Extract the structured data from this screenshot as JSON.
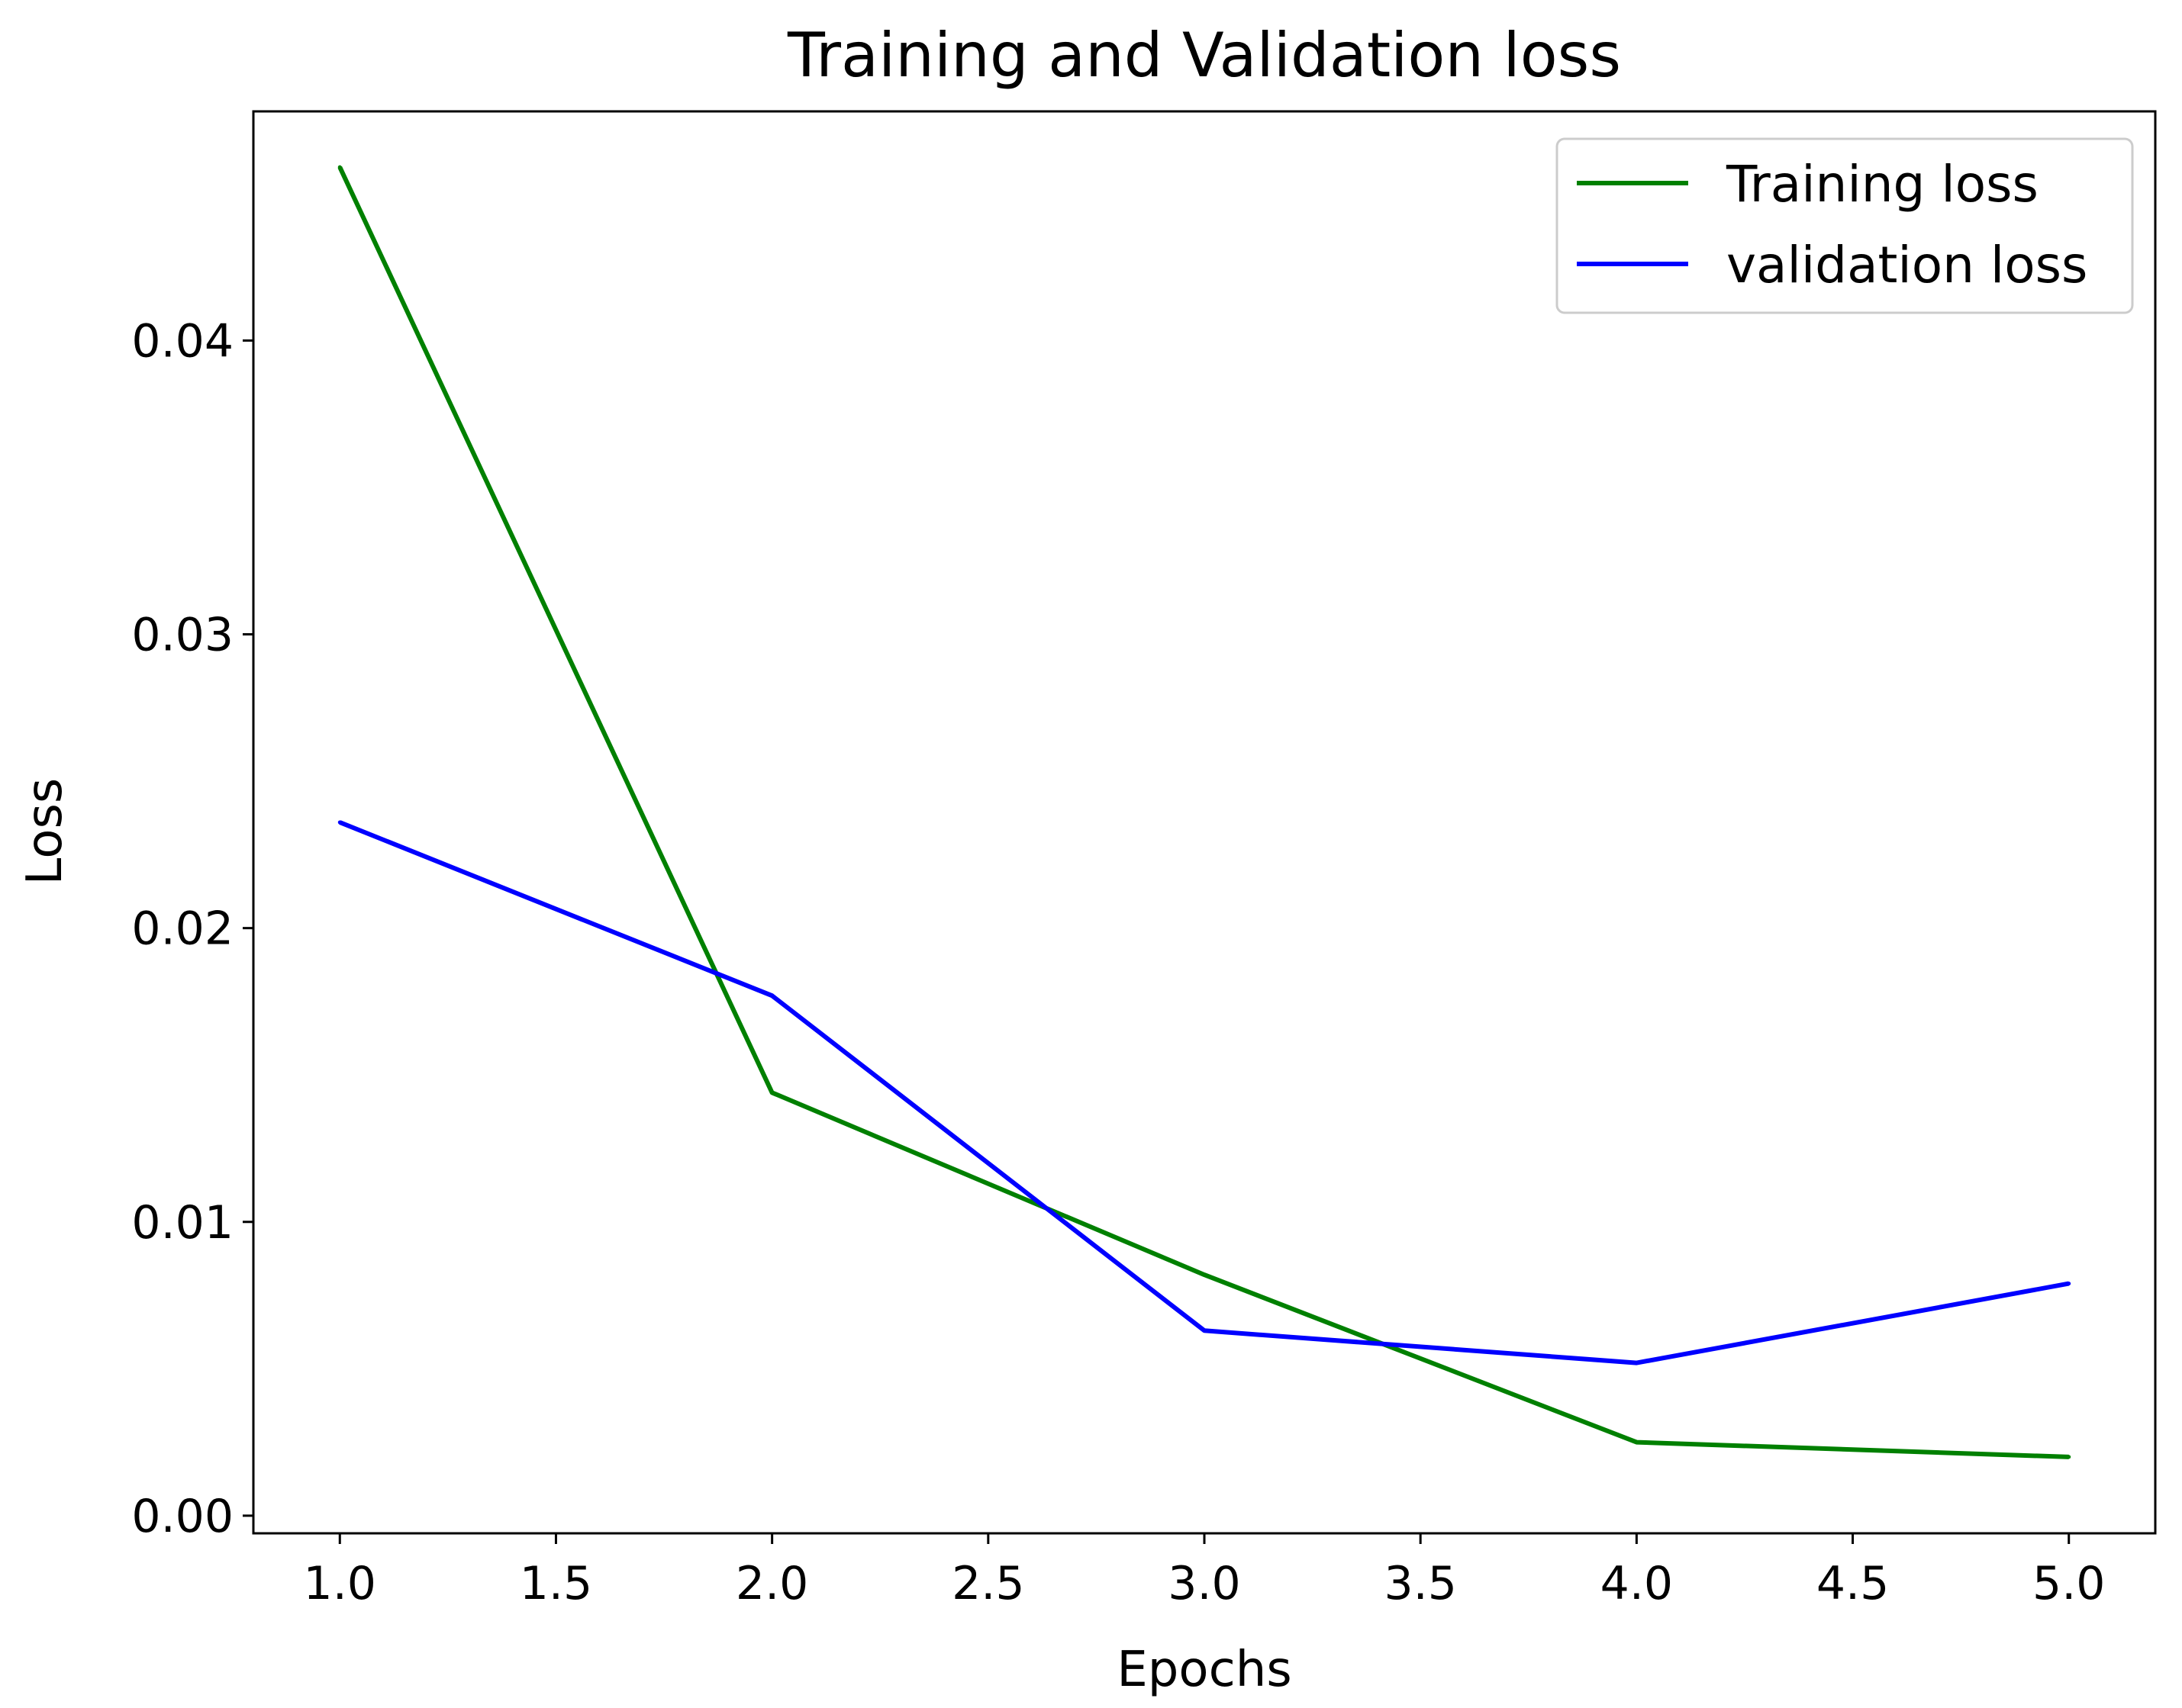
{
  "chart_data": {
    "type": "line",
    "title": "Training and Validation loss",
    "xlabel": "Epochs",
    "ylabel": "Loss",
    "xlim": [
      0.8,
      5.2
    ],
    "ylim": [
      -0.0006,
      0.0478
    ],
    "xticks": [
      1.0,
      1.5,
      2.0,
      2.5,
      3.0,
      3.5,
      4.0,
      4.5,
      5.0
    ],
    "xtick_labels": [
      "1.0",
      "1.5",
      "2.0",
      "2.5",
      "3.0",
      "3.5",
      "4.0",
      "4.5",
      "5.0"
    ],
    "yticks": [
      0.0,
      0.01,
      0.02,
      0.03,
      0.04
    ],
    "ytick_labels": [
      "0.00",
      "0.01",
      "0.02",
      "0.03",
      "0.04"
    ],
    "grid": false,
    "legend_position": "top-right",
    "x": [
      1,
      2,
      3,
      4,
      5
    ],
    "series": [
      {
        "name": "Training loss",
        "color": "#008000",
        "values": [
          0.0459,
          0.0144,
          0.0082,
          0.0025,
          0.002
        ]
      },
      {
        "name": "validation loss",
        "color": "#0000ff",
        "values": [
          0.0236,
          0.0177,
          0.0063,
          0.0052,
          0.0079
        ]
      }
    ]
  }
}
